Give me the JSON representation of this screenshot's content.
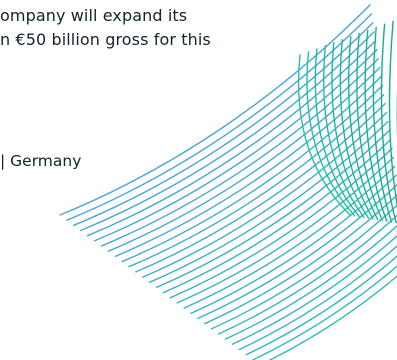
{
  "quote": {
    "line_1": "ompany will expand its",
    "line_2": "n €50 billion gross for this"
  },
  "attribution": {
    "text": "| Germany"
  },
  "colors": {
    "text": "#14232e",
    "line_blue": "#4aa3df",
    "line_green": "#22c3a6",
    "line_dark_green": "#11a58a"
  }
}
